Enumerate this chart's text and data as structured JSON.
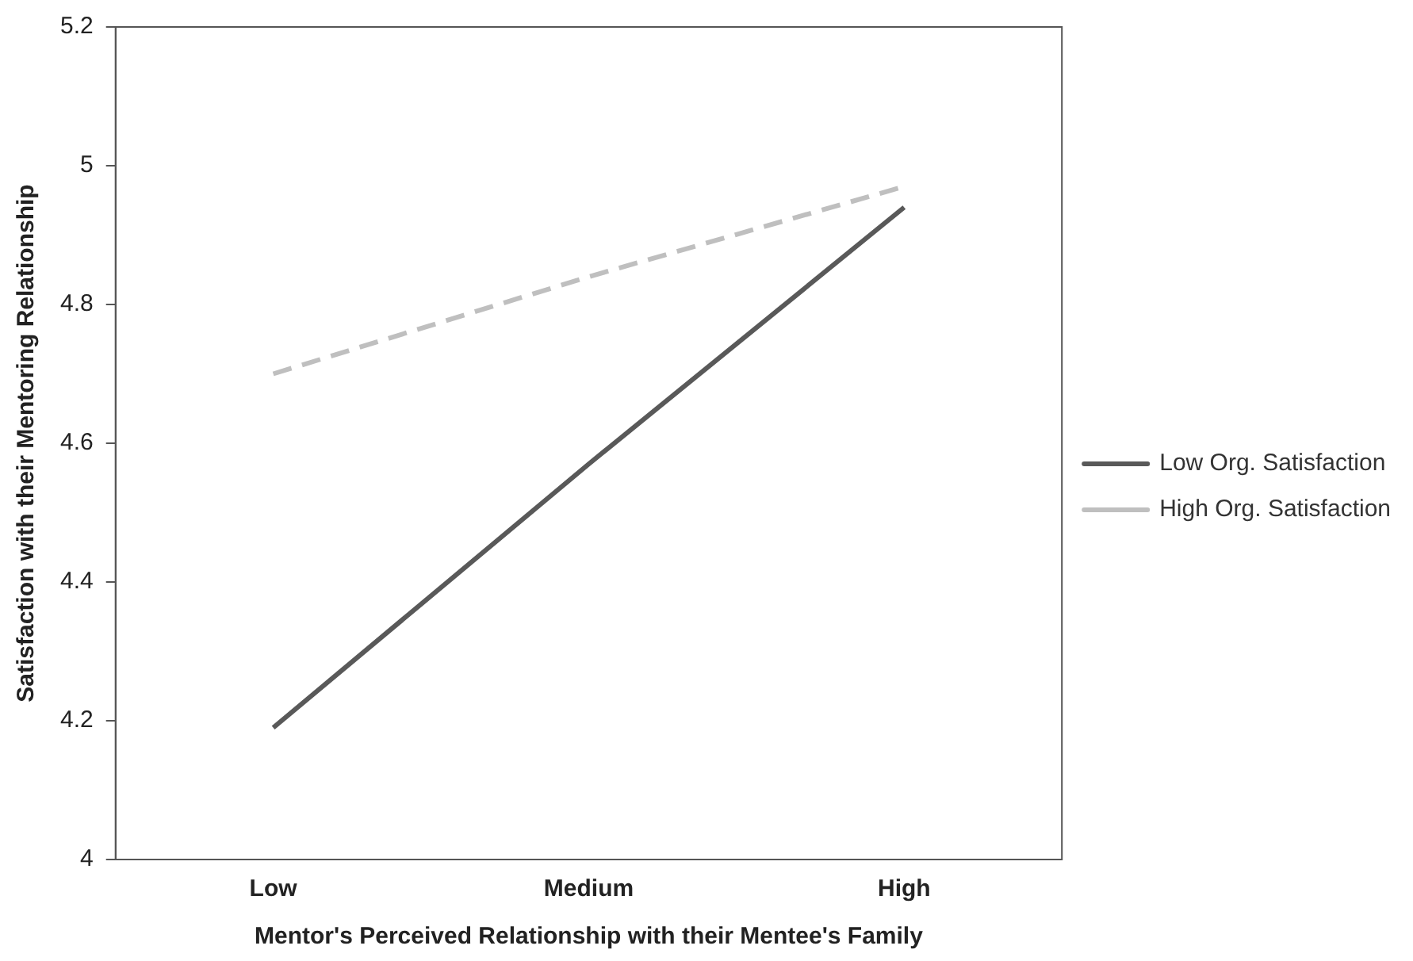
{
  "chart_data": {
    "type": "line",
    "xlabel": "Mentor's Perceived Relationship with their Mentee's Family",
    "ylabel": "Satisfaction with their Mentoring Relationship",
    "categories": [
      "Low",
      "Medium",
      "High"
    ],
    "series": [
      {
        "name": "Low Org. Satisfaction",
        "color": "#595959",
        "values": [
          4.19,
          4.57,
          4.94
        ],
        "line_style": "solid"
      },
      {
        "name": "High Org. Satisfaction",
        "color": "#bfbfbf",
        "values": [
          4.7,
          4.84,
          4.97
        ],
        "line_style": "dashed"
      }
    ],
    "ylim": [
      4,
      5.2
    ],
    "yticks": [
      4,
      4.2,
      4.4,
      4.6,
      4.8,
      5,
      5.2
    ],
    "grid": false,
    "legend": "right",
    "marker": "none"
  }
}
